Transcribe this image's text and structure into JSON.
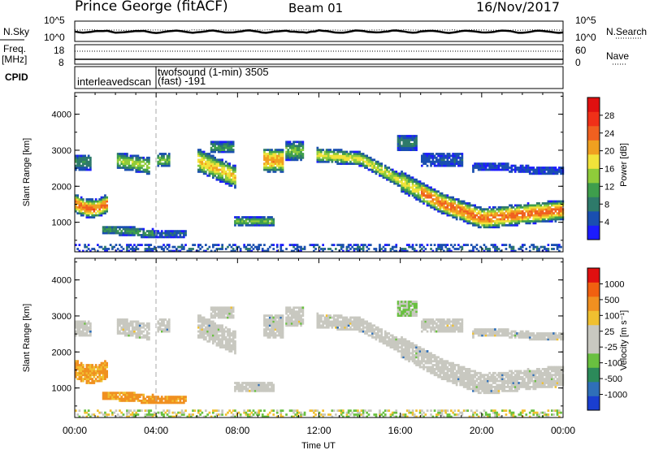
{
  "header": {
    "station": "Prince George (fitACF)",
    "beam": "Beam 01",
    "date": "16/Nov/2017"
  },
  "top_panels": {
    "nsky_label": "N.Sky",
    "nsearch_label": "N.Search",
    "noise_left_top": "10^5",
    "noise_left_bot": "10^0",
    "noise_right_top": "10^5",
    "noise_right_bot": "10^0",
    "freq_label": "Freq.",
    "freq_unit": "[MHz]",
    "freq_top": "18",
    "freq_bot": "8",
    "nave_label": "Nave",
    "nave_top": "60",
    "nave_bot": "0",
    "cpid_label": "CPID",
    "cpid_1": "interleavedscan",
    "cpid_2a": "twofsound (1-min) 3505",
    "cpid_2b": "(fast) -191"
  },
  "chart_data": [
    {
      "type": "heatmap",
      "quantity": "Power",
      "ylabel": "Slant Range [km]",
      "yticks": [
        1000,
        2000,
        3000,
        4000
      ],
      "ylim": [
        180,
        4600
      ],
      "colorbar": {
        "label": "Power [dB]",
        "ticks": [
          "4",
          "8",
          "12",
          "16",
          "20",
          "24",
          "28"
        ],
        "colors": [
          "#1c1cff",
          "#1a4fb0",
          "#2e7a6a",
          "#3e9e4c",
          "#8fcc3a",
          "#f2e33a",
          "#f0a020",
          "#f06020",
          "#f03018",
          "#e01010"
        ]
      }
    },
    {
      "type": "heatmap",
      "quantity": "Velocity",
      "ylabel": "Slant Range [km]",
      "yticks": [
        1000,
        2000,
        3000,
        4000
      ],
      "ylim": [
        180,
        4600
      ],
      "xlabel": "Time UT",
      "xticks": [
        "00:00",
        "04:00",
        "08:00",
        "12:00",
        "16:00",
        "20:00",
        "00:00"
      ],
      "colorbar": {
        "label": "Velocity [m s⁻¹]",
        "ticks": [
          "1000",
          "500",
          "100",
          "25",
          "-25",
          "-100",
          "-500",
          "-1000"
        ],
        "colors": [
          "#1a3ed0",
          "#2f6fb8",
          "#2c8a5a",
          "#69c040",
          "#c8c8c0",
          "#c8c8c0",
          "#f0c030",
          "#f09020",
          "#f06010",
          "#e01010"
        ]
      }
    }
  ]
}
